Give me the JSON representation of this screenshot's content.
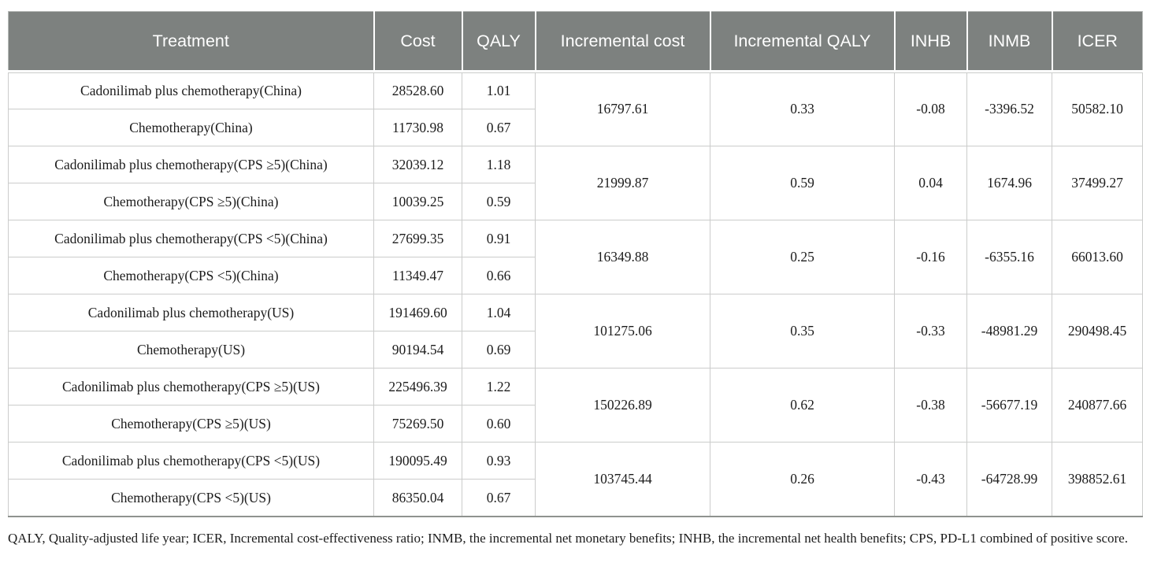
{
  "colors": {
    "header_bg": "#7d817f",
    "header_text": "#ffffff",
    "grid_line": "#cbcccb",
    "bottom_rule": "#8f928f",
    "body_text": "#1c1c1c"
  },
  "table": {
    "columns": [
      "Treatment",
      "Cost",
      "QALY",
      "Incremental cost",
      "Incremental QALY",
      "INHB",
      "INMB",
      "ICER"
    ],
    "groups": [
      {
        "rows": [
          {
            "treatment": "Cadonilimab plus chemotherapy(China)",
            "cost": "28528.60",
            "qaly": "1.01"
          },
          {
            "treatment": "Chemotherapy(China)",
            "cost": "11730.98",
            "qaly": "0.67"
          }
        ],
        "incremental_cost": "16797.61",
        "incremental_qaly": "0.33",
        "inhb": "-0.08",
        "inmb": "-3396.52",
        "icer": "50582.10"
      },
      {
        "rows": [
          {
            "treatment": "Cadonilimab plus chemotherapy(CPS ≥5)(China)",
            "cost": "32039.12",
            "qaly": "1.18"
          },
          {
            "treatment": "Chemotherapy(CPS ≥5)(China)",
            "cost": "10039.25",
            "qaly": "0.59"
          }
        ],
        "incremental_cost": "21999.87",
        "incremental_qaly": "0.59",
        "inhb": "0.04",
        "inmb": "1674.96",
        "icer": "37499.27"
      },
      {
        "rows": [
          {
            "treatment": "Cadonilimab plus chemotherapy(CPS <5)(China)",
            "cost": "27699.35",
            "qaly": "0.91"
          },
          {
            "treatment": "Chemotherapy(CPS <5)(China)",
            "cost": "11349.47",
            "qaly": "0.66"
          }
        ],
        "incremental_cost": "16349.88",
        "incremental_qaly": "0.25",
        "inhb": "-0.16",
        "inmb": "-6355.16",
        "icer": "66013.60"
      },
      {
        "rows": [
          {
            "treatment": "Cadonilimab plus chemotherapy(US)",
            "cost": "191469.60",
            "qaly": "1.04"
          },
          {
            "treatment": "Chemotherapy(US)",
            "cost": "90194.54",
            "qaly": "0.69"
          }
        ],
        "incremental_cost": "101275.06",
        "incremental_qaly": "0.35",
        "inhb": "-0.33",
        "inmb": "-48981.29",
        "icer": "290498.45"
      },
      {
        "rows": [
          {
            "treatment": "Cadonilimab plus chemotherapy(CPS ≥5)(US)",
            "cost": "225496.39",
            "qaly": "1.22"
          },
          {
            "treatment": "Chemotherapy(CPS ≥5)(US)",
            "cost": "75269.50",
            "qaly": "0.60"
          }
        ],
        "incremental_cost": "150226.89",
        "incremental_qaly": "0.62",
        "inhb": "-0.38",
        "inmb": "-56677.19",
        "icer": "240877.66"
      },
      {
        "rows": [
          {
            "treatment": "Cadonilimab plus chemotherapy(CPS <5)(US)",
            "cost": "190095.49",
            "qaly": "0.93"
          },
          {
            "treatment": "Chemotherapy(CPS <5)(US)",
            "cost": "86350.04",
            "qaly": "0.67"
          }
        ],
        "incremental_cost": "103745.44",
        "incremental_qaly": "0.26",
        "inhb": "-0.43",
        "inmb": "-64728.99",
        "icer": "398852.61"
      }
    ],
    "footnote": "QALY, Quality-adjusted life year; ICER, Incremental cost-effectiveness ratio; INMB, the incremental net monetary benefits; INHB, the incremental net health benefits; CPS, PD-L1 combined of positive score."
  }
}
